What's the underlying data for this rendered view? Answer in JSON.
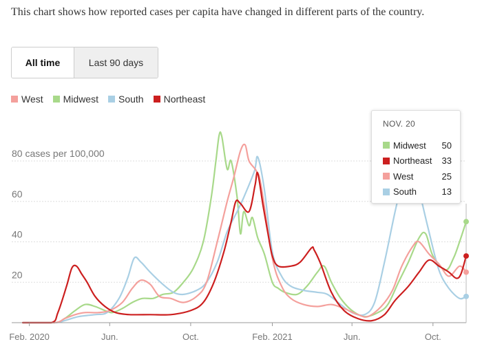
{
  "intro": "This chart shows how reported cases per capita have changed in different parts of the country.",
  "toggle": {
    "options": [
      "All time",
      "Last 90 days"
    ],
    "selected": "All time"
  },
  "colors": {
    "West": "#f4a09c",
    "Midwest": "#a8d98a",
    "South": "#a9cfe4",
    "Northeast": "#cc1f1f",
    "grid": "#dddddd",
    "axis_text": "#777777"
  },
  "tooltip": {
    "date": "NOV. 20",
    "rows": [
      {
        "name": "Midwest",
        "value": "50"
      },
      {
        "name": "Northeast",
        "value": "33"
      },
      {
        "name": "West",
        "value": "25"
      },
      {
        "name": "South",
        "value": "13"
      }
    ]
  },
  "chart_data": {
    "type": "line",
    "ylabel": "80 cases per 100,000",
    "yticks": [
      20,
      40,
      60,
      80
    ],
    "ylim": [
      0,
      95
    ],
    "xlim": [
      "2020-01-22",
      "2021-11-20"
    ],
    "xticks": [
      {
        "date": "2020-02-01",
        "label": "Feb. 2020"
      },
      {
        "date": "2020-06-01",
        "label": "Jun."
      },
      {
        "date": "2020-10-01",
        "label": "Oct."
      },
      {
        "date": "2021-02-01",
        "label": "Feb. 2021"
      },
      {
        "date": "2021-06-01",
        "label": "Jun."
      },
      {
        "date": "2021-10-01",
        "label": "Oct."
      }
    ],
    "legend": [
      "West",
      "Midwest",
      "South",
      "Northeast"
    ],
    "legend_position": "top-left",
    "grid": true,
    "series": [
      {
        "name": "Midwest",
        "points": [
          [
            "2020-01-22",
            0
          ],
          [
            "2020-03-10",
            0
          ],
          [
            "2020-03-25",
            2
          ],
          [
            "2020-04-10",
            6
          ],
          [
            "2020-04-25",
            9
          ],
          [
            "2020-05-10",
            8
          ],
          [
            "2020-05-25",
            6
          ],
          [
            "2020-06-05",
            5
          ],
          [
            "2020-06-20",
            7
          ],
          [
            "2020-07-05",
            10
          ],
          [
            "2020-07-20",
            12
          ],
          [
            "2020-08-05",
            12
          ],
          [
            "2020-08-20",
            14
          ],
          [
            "2020-09-05",
            15
          ],
          [
            "2020-09-20",
            20
          ],
          [
            "2020-10-05",
            27
          ],
          [
            "2020-10-20",
            40
          ],
          [
            "2020-11-01",
            62
          ],
          [
            "2020-11-08",
            80
          ],
          [
            "2020-11-13",
            93
          ],
          [
            "2020-11-17",
            92
          ],
          [
            "2020-11-25",
            76
          ],
          [
            "2020-12-01",
            80
          ],
          [
            "2020-12-10",
            62
          ],
          [
            "2020-12-15",
            44
          ],
          [
            "2020-12-20",
            55
          ],
          [
            "2020-12-28",
            48
          ],
          [
            "2021-01-02",
            52
          ],
          [
            "2021-01-10",
            42
          ],
          [
            "2021-01-20",
            34
          ],
          [
            "2021-02-01",
            20
          ],
          [
            "2021-02-10",
            17
          ],
          [
            "2021-02-20",
            15
          ],
          [
            "2021-03-10",
            14
          ],
          [
            "2021-03-25",
            18
          ],
          [
            "2021-04-10",
            25
          ],
          [
            "2021-04-20",
            28
          ],
          [
            "2021-05-01",
            20
          ],
          [
            "2021-05-15",
            12
          ],
          [
            "2021-06-01",
            6
          ],
          [
            "2021-06-20",
            3
          ],
          [
            "2021-07-10",
            5
          ],
          [
            "2021-07-25",
            9
          ],
          [
            "2021-08-10",
            20
          ],
          [
            "2021-08-25",
            30
          ],
          [
            "2021-09-10",
            42
          ],
          [
            "2021-09-20",
            44
          ],
          [
            "2021-10-01",
            33
          ],
          [
            "2021-10-20",
            26
          ],
          [
            "2021-11-01",
            32
          ],
          [
            "2021-11-10",
            40
          ],
          [
            "2021-11-20",
            50
          ]
        ]
      },
      {
        "name": "South",
        "points": [
          [
            "2020-01-22",
            0
          ],
          [
            "2020-03-10",
            0
          ],
          [
            "2020-03-25",
            1
          ],
          [
            "2020-04-15",
            3
          ],
          [
            "2020-05-10",
            4
          ],
          [
            "2020-05-28",
            5
          ],
          [
            "2020-06-15",
            12
          ],
          [
            "2020-06-28",
            22
          ],
          [
            "2020-07-08",
            32
          ],
          [
            "2020-07-18",
            30
          ],
          [
            "2020-08-01",
            25
          ],
          [
            "2020-08-20",
            19
          ],
          [
            "2020-09-05",
            15
          ],
          [
            "2020-09-20",
            14
          ],
          [
            "2020-10-10",
            16
          ],
          [
            "2020-10-25",
            20
          ],
          [
            "2020-11-10",
            30
          ],
          [
            "2020-11-25",
            45
          ],
          [
            "2020-12-10",
            55
          ],
          [
            "2020-12-20",
            62
          ],
          [
            "2021-01-05",
            75
          ],
          [
            "2021-01-10",
            82
          ],
          [
            "2021-01-20",
            66
          ],
          [
            "2021-02-01",
            35
          ],
          [
            "2021-02-15",
            23
          ],
          [
            "2021-03-01",
            18
          ],
          [
            "2021-03-20",
            16
          ],
          [
            "2021-04-10",
            15
          ],
          [
            "2021-04-25",
            14
          ],
          [
            "2021-05-15",
            9
          ],
          [
            "2021-06-01",
            5
          ],
          [
            "2021-06-20",
            4
          ],
          [
            "2021-07-05",
            10
          ],
          [
            "2021-07-20",
            30
          ],
          [
            "2021-08-05",
            55
          ],
          [
            "2021-08-20",
            75
          ],
          [
            "2021-09-01",
            80
          ],
          [
            "2021-09-10",
            66
          ],
          [
            "2021-09-25",
            45
          ],
          [
            "2021-10-10",
            26
          ],
          [
            "2021-10-25",
            17
          ],
          [
            "2021-11-10",
            12
          ],
          [
            "2021-11-20",
            13
          ]
        ]
      },
      {
        "name": "West",
        "points": [
          [
            "2020-01-22",
            0
          ],
          [
            "2020-03-10",
            0
          ],
          [
            "2020-03-25",
            2
          ],
          [
            "2020-04-10",
            4
          ],
          [
            "2020-04-25",
            5
          ],
          [
            "2020-05-15",
            5
          ],
          [
            "2020-06-01",
            6
          ],
          [
            "2020-06-20",
            10
          ],
          [
            "2020-07-05",
            17
          ],
          [
            "2020-07-18",
            21
          ],
          [
            "2020-08-01",
            19
          ],
          [
            "2020-08-15",
            13
          ],
          [
            "2020-09-01",
            12
          ],
          [
            "2020-09-20",
            10
          ],
          [
            "2020-10-10",
            13
          ],
          [
            "2020-10-25",
            20
          ],
          [
            "2020-11-10",
            40
          ],
          [
            "2020-11-25",
            60
          ],
          [
            "2020-12-05",
            72
          ],
          [
            "2020-12-15",
            85
          ],
          [
            "2020-12-22",
            88
          ],
          [
            "2020-12-28",
            80
          ],
          [
            "2021-01-08",
            75
          ],
          [
            "2021-01-15",
            68
          ],
          [
            "2021-02-01",
            32
          ],
          [
            "2021-02-15",
            18
          ],
          [
            "2021-03-01",
            12
          ],
          [
            "2021-03-20",
            9
          ],
          [
            "2021-04-10",
            8
          ],
          [
            "2021-05-01",
            9
          ],
          [
            "2021-05-20",
            7
          ],
          [
            "2021-06-10",
            4
          ],
          [
            "2021-06-25",
            3
          ],
          [
            "2021-07-15",
            8
          ],
          [
            "2021-08-01",
            16
          ],
          [
            "2021-08-15",
            28
          ],
          [
            "2021-09-01",
            38
          ],
          [
            "2021-09-10",
            40
          ],
          [
            "2021-09-25",
            34
          ],
          [
            "2021-10-10",
            29
          ],
          [
            "2021-10-25",
            23
          ],
          [
            "2021-11-10",
            28
          ],
          [
            "2021-11-20",
            25
          ]
        ]
      },
      {
        "name": "Northeast",
        "points": [
          [
            "2020-01-22",
            0
          ],
          [
            "2020-03-05",
            0
          ],
          [
            "2020-03-15",
            5
          ],
          [
            "2020-03-28",
            18
          ],
          [
            "2020-04-05",
            27
          ],
          [
            "2020-04-12",
            28
          ],
          [
            "2020-04-20",
            24
          ],
          [
            "2020-04-28",
            20
          ],
          [
            "2020-05-10",
            13
          ],
          [
            "2020-05-25",
            8
          ],
          [
            "2020-06-10",
            5
          ],
          [
            "2020-07-01",
            4
          ],
          [
            "2020-08-01",
            4
          ],
          [
            "2020-09-01",
            4
          ],
          [
            "2020-10-01",
            6
          ],
          [
            "2020-10-20",
            10
          ],
          [
            "2020-11-05",
            20
          ],
          [
            "2020-11-20",
            35
          ],
          [
            "2020-12-01",
            50
          ],
          [
            "2020-12-08",
            60
          ],
          [
            "2020-12-15",
            59
          ],
          [
            "2020-12-28",
            55
          ],
          [
            "2021-01-06",
            68
          ],
          [
            "2021-01-10",
            74
          ],
          [
            "2021-01-18",
            58
          ],
          [
            "2021-01-25",
            45
          ],
          [
            "2021-02-01",
            33
          ],
          [
            "2021-02-10",
            28
          ],
          [
            "2021-03-01",
            28
          ],
          [
            "2021-03-15",
            30
          ],
          [
            "2021-04-01",
            37
          ],
          [
            "2021-04-05",
            36
          ],
          [
            "2021-04-15",
            29
          ],
          [
            "2021-05-01",
            15
          ],
          [
            "2021-05-20",
            6
          ],
          [
            "2021-06-10",
            2
          ],
          [
            "2021-07-01",
            1
          ],
          [
            "2021-07-20",
            4
          ],
          [
            "2021-08-05",
            11
          ],
          [
            "2021-08-25",
            18
          ],
          [
            "2021-09-10",
            25
          ],
          [
            "2021-09-25",
            31
          ],
          [
            "2021-10-10",
            28
          ],
          [
            "2021-10-25",
            25
          ],
          [
            "2021-11-05",
            22
          ],
          [
            "2021-11-12",
            24
          ],
          [
            "2021-11-20",
            33
          ]
        ]
      }
    ]
  }
}
